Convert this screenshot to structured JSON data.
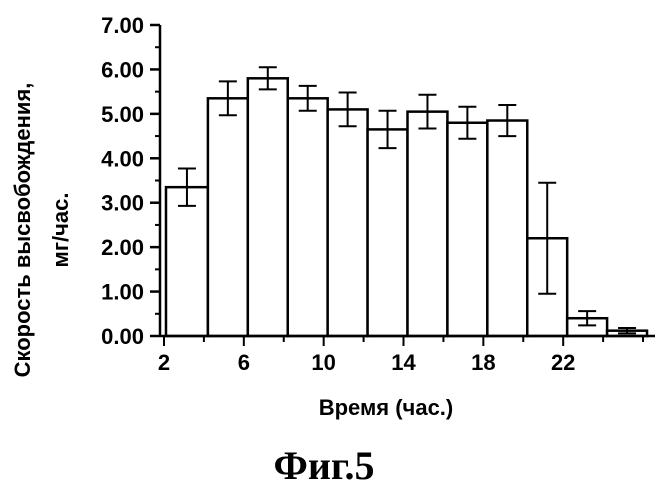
{
  "chart_data": {
    "type": "bar",
    "xlabel": "Время (час.)",
    "ylabel": [
      "Скорость высвобождения,",
      "мг/час."
    ],
    "caption": "Фиг.5",
    "ylim": [
      0,
      7
    ],
    "yticks": [
      "0.00",
      "1.00",
      "2.00",
      "3.00",
      "4.00",
      "5.00",
      "6.00",
      "7.00"
    ],
    "xlim": [
      1.8,
      26.6
    ],
    "xticks": [
      2,
      6,
      10,
      14,
      18,
      22
    ],
    "grid": false,
    "bars": [
      {
        "x0": 2.1,
        "x1": 4.2,
        "value": 3.35,
        "err": 0.42
      },
      {
        "x0": 4.2,
        "x1": 6.2,
        "value": 5.35,
        "err": 0.38
      },
      {
        "x0": 6.2,
        "x1": 8.2,
        "value": 5.8,
        "err": 0.25
      },
      {
        "x0": 8.2,
        "x1": 10.2,
        "value": 5.35,
        "err": 0.28
      },
      {
        "x0": 10.2,
        "x1": 12.2,
        "value": 5.1,
        "err": 0.38
      },
      {
        "x0": 12.2,
        "x1": 14.2,
        "value": 4.65,
        "err": 0.42
      },
      {
        "x0": 14.2,
        "x1": 16.2,
        "value": 5.05,
        "err": 0.38
      },
      {
        "x0": 16.2,
        "x1": 18.2,
        "value": 4.8,
        "err": 0.36
      },
      {
        "x0": 18.2,
        "x1": 20.2,
        "value": 4.85,
        "err": 0.35
      },
      {
        "x0": 20.2,
        "x1": 22.2,
        "value": 2.2,
        "err": 1.25
      },
      {
        "x0": 22.2,
        "x1": 24.2,
        "value": 0.4,
        "err": 0.16
      },
      {
        "x0": 24.2,
        "x1": 26.2,
        "value": 0.12,
        "err": 0.06
      }
    ]
  }
}
